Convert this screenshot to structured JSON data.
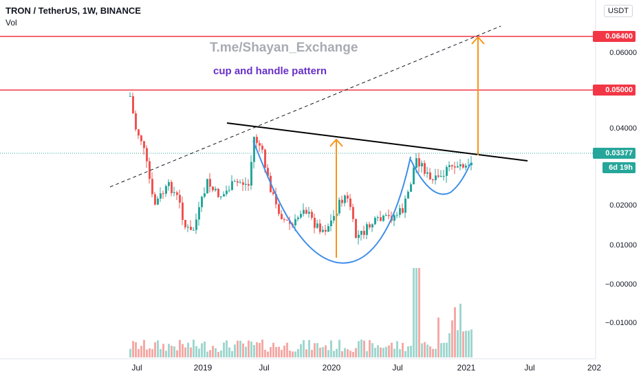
{
  "header": {
    "symbol_title": "TRON / TetherUS, 1W, BINANCE",
    "volume_label": "Vol",
    "currency_button": "USDT"
  },
  "annotations": {
    "watermark": "T.me/Shayan_Exchange",
    "pattern_label": "cup and handle pattern"
  },
  "price_tags": {
    "target": "0.06400",
    "resistance": "0.05000",
    "current": "0.03377",
    "countdown": "6d 19h"
  },
  "y_axis_labels": [
    "0.06000",
    "0.04000",
    "0.02000",
    "0.01000",
    "−0.00000",
    "−0.01000"
  ],
  "x_axis_labels": [
    "Jul",
    "2019",
    "Jul",
    "2020",
    "Jul",
    "2021",
    "Jul",
    "202"
  ],
  "colors": {
    "up_candle": "#26a69a",
    "down_candle": "#ef5350",
    "horizontal_level": "#f23645",
    "cup_curve": "#3d8ee8",
    "target_arrow": "#f7931a",
    "neckline": "#000000",
    "current_price_line": "#26a69a"
  },
  "chart_data": {
    "type": "candlestick",
    "title": "TRON / TetherUS, 1W, BINANCE",
    "y_ticks": [
      0.06,
      0.04,
      0.02,
      0.01,
      -0.0,
      -0.01
    ],
    "x_ticks": [
      "Jul",
      "2019",
      "Jul",
      "2020",
      "Jul",
      "2021",
      "Jul",
      "202"
    ],
    "horizontal_levels": [
      0.064,
      0.05
    ],
    "current_price": 0.03377,
    "pattern": "cup and handle",
    "series": [
      {
        "name": "Vol",
        "type": "bar"
      }
    ]
  }
}
